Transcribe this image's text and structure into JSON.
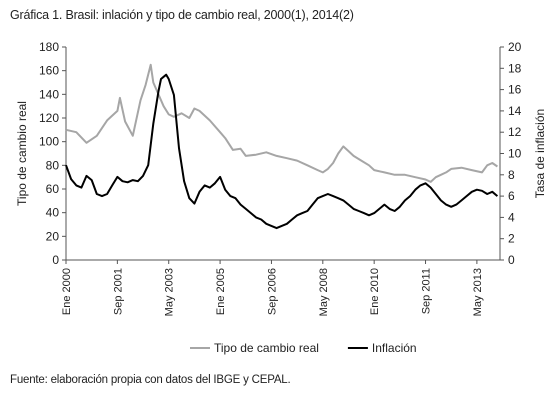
{
  "title": "Gráfica 1. Brasil: inlación y tipo de cambio real, 2000(1), 2014(2)",
  "source": "Fuente: elaboración propia con datos del IBGE y CEPAL.",
  "chart_data": {
    "type": "line",
    "title": "Gráfica 1. Brasil: inlación y tipo de cambio real, 2000(1), 2014(2)",
    "x_tick_labels": [
      "Ene 2000",
      "Sep 2001",
      "May 2003",
      "Ene 2005",
      "Sep 2006",
      "May 2008",
      "Ene 2010",
      "Sep 2011",
      "May 2013"
    ],
    "x_tick_index": [
      0,
      20,
      40,
      60,
      80,
      100,
      120,
      140,
      160
    ],
    "x_range": [
      0,
      169
    ],
    "y_left": {
      "label": "Tipo de cambio real",
      "ticks": [
        "0",
        "20",
        "40",
        "60",
        "80",
        "100",
        "120",
        "140",
        "160",
        "180"
      ],
      "range": [
        0,
        180
      ]
    },
    "y_right": {
      "label": "Tasa de inflación",
      "ticks": [
        "0",
        "2",
        "4",
        "6",
        "8",
        "10",
        "12",
        "14",
        "16",
        "18",
        "20"
      ],
      "range": [
        0,
        20
      ]
    },
    "grid": false,
    "legend_position": "bottom",
    "series": [
      {
        "name": "Tipo de cambio real",
        "axis": "left",
        "color": "#a6a6a6",
        "points": [
          [
            0,
            110
          ],
          [
            4,
            108
          ],
          [
            8,
            99
          ],
          [
            12,
            105
          ],
          [
            16,
            118
          ],
          [
            20,
            126
          ],
          [
            21,
            137
          ],
          [
            23,
            117
          ],
          [
            26,
            105
          ],
          [
            29,
            135
          ],
          [
            31,
            148
          ],
          [
            33,
            165
          ],
          [
            34,
            150
          ],
          [
            38,
            130
          ],
          [
            40,
            123
          ],
          [
            42,
            121
          ],
          [
            45,
            124
          ],
          [
            48,
            120
          ],
          [
            50,
            128
          ],
          [
            52,
            126
          ],
          [
            56,
            118
          ],
          [
            60,
            108
          ],
          [
            62,
            103
          ],
          [
            65,
            93
          ],
          [
            68,
            94
          ],
          [
            70,
            88
          ],
          [
            74,
            89
          ],
          [
            78,
            91
          ],
          [
            82,
            88
          ],
          [
            86,
            86
          ],
          [
            90,
            84
          ],
          [
            94,
            80
          ],
          [
            98,
            76
          ],
          [
            100,
            74
          ],
          [
            102,
            77
          ],
          [
            104,
            82
          ],
          [
            106,
            90
          ],
          [
            108,
            96
          ],
          [
            110,
            92
          ],
          [
            112,
            88
          ],
          [
            115,
            84
          ],
          [
            118,
            80
          ],
          [
            120,
            76
          ],
          [
            124,
            74
          ],
          [
            128,
            72
          ],
          [
            132,
            72
          ],
          [
            136,
            70
          ],
          [
            140,
            68
          ],
          [
            142,
            66
          ],
          [
            144,
            70
          ],
          [
            146,
            72
          ],
          [
            148,
            74
          ],
          [
            150,
            77
          ],
          [
            154,
            78
          ],
          [
            158,
            76
          ],
          [
            162,
            74
          ],
          [
            164,
            80
          ],
          [
            166,
            82
          ],
          [
            168,
            79
          ]
        ]
      },
      {
        "name": "Inflación",
        "axis": "right",
        "color": "#000000",
        "points": [
          [
            0,
            8.9
          ],
          [
            2,
            7.6
          ],
          [
            4,
            7.0
          ],
          [
            6,
            6.8
          ],
          [
            8,
            7.9
          ],
          [
            10,
            7.5
          ],
          [
            12,
            6.2
          ],
          [
            14,
            6.0
          ],
          [
            16,
            6.2
          ],
          [
            18,
            7.0
          ],
          [
            20,
            7.8
          ],
          [
            22,
            7.4
          ],
          [
            24,
            7.3
          ],
          [
            26,
            7.5
          ],
          [
            28,
            7.4
          ],
          [
            30,
            7.9
          ],
          [
            32,
            8.9
          ],
          [
            34,
            12.8
          ],
          [
            36,
            15.8
          ],
          [
            37,
            17.0
          ],
          [
            38,
            17.2
          ],
          [
            39,
            17.4
          ],
          [
            40,
            17.0
          ],
          [
            42,
            15.5
          ],
          [
            44,
            10.5
          ],
          [
            46,
            7.4
          ],
          [
            48,
            5.8
          ],
          [
            50,
            5.3
          ],
          [
            52,
            6.4
          ],
          [
            54,
            7.0
          ],
          [
            56,
            6.8
          ],
          [
            58,
            7.2
          ],
          [
            60,
            7.8
          ],
          [
            62,
            6.6
          ],
          [
            64,
            6.0
          ],
          [
            66,
            5.8
          ],
          [
            68,
            5.2
          ],
          [
            70,
            4.8
          ],
          [
            72,
            4.4
          ],
          [
            74,
            4.0
          ],
          [
            76,
            3.8
          ],
          [
            78,
            3.4
          ],
          [
            80,
            3.2
          ],
          [
            82,
            3.0
          ],
          [
            84,
            3.2
          ],
          [
            86,
            3.4
          ],
          [
            88,
            3.8
          ],
          [
            90,
            4.2
          ],
          [
            92,
            4.4
          ],
          [
            94,
            4.6
          ],
          [
            96,
            5.2
          ],
          [
            98,
            5.8
          ],
          [
            100,
            6.0
          ],
          [
            102,
            6.2
          ],
          [
            104,
            6.0
          ],
          [
            106,
            5.8
          ],
          [
            108,
            5.6
          ],
          [
            110,
            5.2
          ],
          [
            112,
            4.8
          ],
          [
            114,
            4.6
          ],
          [
            116,
            4.4
          ],
          [
            118,
            4.2
          ],
          [
            120,
            4.4
          ],
          [
            122,
            4.8
          ],
          [
            124,
            5.2
          ],
          [
            126,
            4.8
          ],
          [
            128,
            4.6
          ],
          [
            130,
            5.0
          ],
          [
            132,
            5.6
          ],
          [
            134,
            6.0
          ],
          [
            136,
            6.6
          ],
          [
            138,
            7.0
          ],
          [
            140,
            7.2
          ],
          [
            142,
            6.8
          ],
          [
            144,
            6.2
          ],
          [
            146,
            5.6
          ],
          [
            148,
            5.2
          ],
          [
            150,
            5.0
          ],
          [
            152,
            5.2
          ],
          [
            154,
            5.6
          ],
          [
            156,
            6.0
          ],
          [
            158,
            6.4
          ],
          [
            160,
            6.6
          ],
          [
            162,
            6.5
          ],
          [
            164,
            6.2
          ],
          [
            166,
            6.4
          ],
          [
            168,
            6.0
          ]
        ]
      }
    ]
  }
}
